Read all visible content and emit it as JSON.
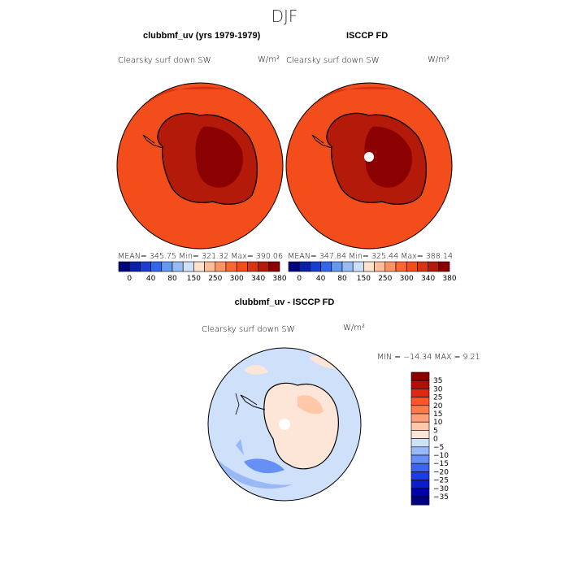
{
  "season": "DJF",
  "panels": [
    {
      "title": "clubbmf_uv (yrs 1979-1979)",
      "variable": "Clearsky surf down SW",
      "units": "W/m²",
      "stats": "MEAN= 345.75   Min= 321.32   Max= 390.06",
      "colorbar": {
        "colors": [
          "#00007a",
          "#0b1fa8",
          "#1a3fd0",
          "#3366e8",
          "#6699f0",
          "#99bbf5",
          "#cfe0fb",
          "#ffe3cc",
          "#ffbd9b",
          "#ff9366",
          "#ff6633",
          "#f24d1a",
          "#d93312",
          "#b31a0a",
          "#8b0000"
        ],
        "labels": [
          "0",
          "40",
          "80",
          "150",
          "250",
          "300",
          "340",
          "380"
        ]
      }
    },
    {
      "title": "ISCCP FD",
      "variable": "Clearsky surf down SW",
      "units": "W/m²",
      "stats": "MEAN= 347.84   Min= 325.44   Max= 388.14",
      "colorbar": {
        "colors": [
          "#00007a",
          "#0b1fa8",
          "#1a3fd0",
          "#3366e8",
          "#6699f0",
          "#99bbf5",
          "#cfe0fb",
          "#ffe3cc",
          "#ffbd9b",
          "#ff9366",
          "#ff6633",
          "#f24d1a",
          "#d93312",
          "#b31a0a",
          "#8b0000"
        ],
        "labels": [
          "0",
          "40",
          "80",
          "150",
          "250",
          "300",
          "340",
          "380"
        ]
      }
    },
    {
      "title": "clubbmf_uv - ISCCP FD",
      "variable": "Clearsky surf down SW",
      "units": "W/m²",
      "stats": "MIN = −14.34  MAX =     9.21",
      "colorbar": {
        "colors": [
          "#00007a",
          "#0000a8",
          "#0a1ccc",
          "#1e3ce6",
          "#3c64f0",
          "#6690f5",
          "#99b8f8",
          "#cfe0fb",
          "#fde6d8",
          "#ffc8a8",
          "#ff9f7a",
          "#ff7a50",
          "#ff5528",
          "#e02810",
          "#b01008",
          "#8b0000"
        ],
        "labels": [
          "35",
          "30",
          "25",
          "20",
          "15",
          "10",
          "5",
          "0",
          "−5",
          "−10",
          "−15",
          "−20",
          "−25",
          "−30",
          "−35"
        ]
      }
    }
  ]
}
